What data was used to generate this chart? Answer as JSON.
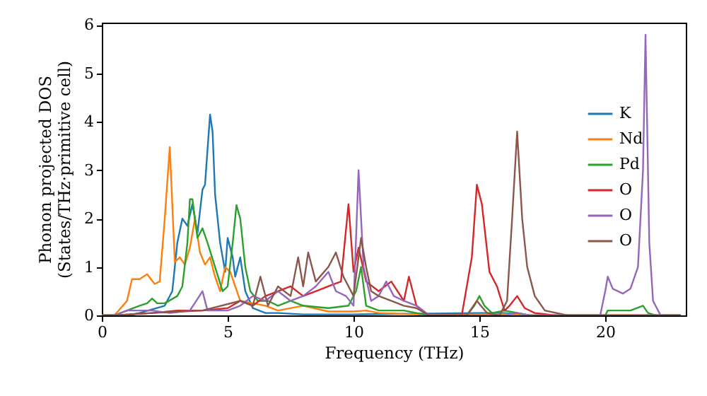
{
  "chart_data": {
    "type": "line",
    "xlabel": "Frequency (THz)",
    "ylabel": "Phonon projected DOS\n(States/THz·primitive cell)",
    "xlim": [
      0,
      23.2
    ],
    "ylim": [
      0,
      6.05
    ],
    "xticks": [
      0,
      5,
      10,
      15,
      20
    ],
    "yticks": [
      0,
      1,
      2,
      3,
      4,
      5,
      6
    ],
    "grid": false,
    "legend": "right",
    "marker": "none",
    "line_style": "solid",
    "series": [
      {
        "name": "K",
        "color": "#1f77b4",
        "x": [
          0,
          1,
          1.5,
          2.5,
          2.8,
          3.0,
          3.2,
          3.4,
          3.6,
          3.8,
          4.0,
          4.1,
          4.3,
          4.4,
          4.5,
          4.7,
          4.9,
          5.0,
          5.2,
          5.3,
          5.5,
          5.7,
          6.0,
          6.5,
          7,
          8,
          10,
          15,
          16,
          17,
          23
        ],
        "values": [
          0,
          0,
          0.05,
          0.2,
          0.5,
          1.5,
          2.0,
          1.85,
          2.3,
          1.7,
          2.6,
          2.7,
          4.15,
          3.8,
          2.5,
          1.5,
          0.9,
          1.6,
          1.2,
          0.8,
          1.2,
          0.5,
          0.15,
          0.05,
          0.05,
          0.02,
          0.02,
          0.05,
          0.05,
          0,
          0
        ]
      },
      {
        "name": "Nd",
        "color": "#ff7f0e",
        "x": [
          0,
          0.5,
          1,
          1.2,
          1.5,
          1.8,
          2.1,
          2.3,
          2.5,
          2.7,
          2.9,
          3.1,
          3.3,
          3.5,
          3.7,
          3.9,
          4.1,
          4.3,
          4.5,
          4.7,
          4.9,
          5.1,
          5.3,
          5.5,
          6,
          6.5,
          7,
          8,
          9,
          10,
          10.5,
          11,
          12,
          12.5,
          13,
          15,
          16,
          17,
          23
        ],
        "values": [
          0,
          0,
          0.3,
          0.75,
          0.75,
          0.85,
          0.65,
          0.7,
          2.0,
          3.48,
          1.1,
          1.2,
          1.05,
          1.4,
          2.0,
          1.3,
          1.05,
          1.2,
          0.8,
          0.5,
          1.0,
          0.9,
          0.6,
          0.3,
          0.25,
          0.2,
          0.1,
          0.2,
          0.08,
          0.08,
          0.1,
          0.05,
          0.03,
          0.02,
          0,
          0.02,
          0.03,
          0,
          0
        ]
      },
      {
        "name": "Pd",
        "color": "#2ca02c",
        "x": [
          0,
          0.5,
          1,
          1.5,
          1.8,
          2.0,
          2.2,
          2.5,
          3,
          3.2,
          3.4,
          3.5,
          3.6,
          3.8,
          4.0,
          4.2,
          4.5,
          4.8,
          5.0,
          5.2,
          5.35,
          5.5,
          5.7,
          5.9,
          6.2,
          6.6,
          7,
          7.5,
          8,
          9,
          9.8,
          10.1,
          10.3,
          10.5,
          11,
          12,
          12.5,
          13,
          14.5,
          14.8,
          15,
          15.2,
          15.5,
          16,
          17,
          20,
          20.1,
          21,
          21.5,
          21.7,
          22,
          23
        ],
        "values": [
          0,
          0,
          0.1,
          0.2,
          0.25,
          0.35,
          0.25,
          0.25,
          0.4,
          0.6,
          1.5,
          2.4,
          2.4,
          1.6,
          1.8,
          1.5,
          1.0,
          0.5,
          0.6,
          1.5,
          2.28,
          2.0,
          1.0,
          0.5,
          0.3,
          0.3,
          0.2,
          0.3,
          0.2,
          0.15,
          0.2,
          0.5,
          1.0,
          0.2,
          0.1,
          0.1,
          0.05,
          0,
          0,
          0.2,
          0.4,
          0.2,
          0.05,
          0.1,
          0,
          0,
          0.1,
          0.1,
          0.2,
          0.05,
          0,
          0
        ]
      },
      {
        "name": "O",
        "color": "#d62728",
        "x": [
          0,
          0.5,
          2,
          3,
          4,
          5,
          5.5,
          6,
          6.5,
          7,
          7.5,
          8,
          8.5,
          9,
          9.5,
          9.8,
          10.0,
          10.2,
          10.5,
          11,
          11.5,
          12,
          12.2,
          12.5,
          13,
          14.3,
          14.7,
          14.9,
          15.1,
          15.4,
          15.7,
          16,
          16.2,
          16.5,
          16.8,
          17.2,
          18,
          23
        ],
        "values": [
          0,
          0,
          0.05,
          0.1,
          0.1,
          0.15,
          0.3,
          0.2,
          0.4,
          0.5,
          0.6,
          0.4,
          0.5,
          0.6,
          0.7,
          2.3,
          0.9,
          1.4,
          0.7,
          0.5,
          0.7,
          0.3,
          0.8,
          0.2,
          0,
          0,
          1.2,
          2.7,
          2.3,
          0.9,
          0.6,
          0.1,
          0.2,
          0.4,
          0.15,
          0.05,
          0,
          0
        ]
      },
      {
        "name": "O",
        "color": "#9467bd",
        "x": [
          0,
          0.5,
          1,
          2,
          2.7,
          3.5,
          4,
          4.2,
          5,
          5.5,
          6,
          6.5,
          7,
          7.5,
          8,
          8.5,
          9,
          9.3,
          9.7,
          10,
          10.2,
          10.4,
          10.7,
          11,
          11.3,
          11.6,
          12,
          12.5,
          13,
          16,
          16.5,
          17,
          19.8,
          20.0,
          20.1,
          20.3,
          20.7,
          21.0,
          21.3,
          21.5,
          21.6,
          21.75,
          21.9,
          22.2,
          23
        ],
        "values": [
          0,
          0,
          0.1,
          0.1,
          0.05,
          0.1,
          0.5,
          0.1,
          0.1,
          0.2,
          0.4,
          0.3,
          0.5,
          0.3,
          0.4,
          0.6,
          0.9,
          0.5,
          0.4,
          0.2,
          3.0,
          1.0,
          0.3,
          0.4,
          0.7,
          0.4,
          0.3,
          0.2,
          0,
          0,
          0.05,
          0,
          0,
          0.5,
          0.8,
          0.55,
          0.45,
          0.55,
          1.0,
          3.0,
          5.8,
          1.5,
          0.3,
          0,
          0
        ]
      },
      {
        "name": "O",
        "color": "#8c564b",
        "x": [
          0,
          0.5,
          2,
          4,
          5.5,
          6,
          6.3,
          6.6,
          7,
          7.5,
          7.8,
          8,
          8.2,
          8.5,
          9,
          9.3,
          9.6,
          10,
          10.3,
          10.5,
          10.7,
          11,
          11.5,
          12,
          12.5,
          13,
          14.5,
          14.9,
          15.3,
          15.8,
          16.1,
          16.3,
          16.5,
          16.7,
          16.9,
          17.2,
          17.6,
          18.5,
          23
        ],
        "values": [
          0,
          0,
          0.05,
          0.1,
          0.3,
          0.2,
          0.8,
          0.2,
          0.6,
          0.4,
          1.2,
          0.6,
          1.3,
          0.7,
          1.0,
          1.3,
          0.8,
          0.4,
          1.6,
          1.0,
          0.5,
          0.4,
          0.3,
          0.2,
          0.15,
          0,
          0,
          0.3,
          0.05,
          0,
          0.3,
          2.0,
          3.8,
          2.0,
          1.0,
          0.4,
          0.1,
          0,
          0
        ]
      }
    ]
  }
}
